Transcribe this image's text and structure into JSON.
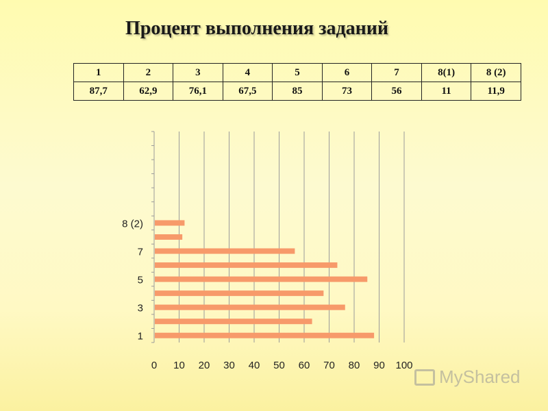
{
  "title": "Процент выполнения заданий",
  "table": {
    "headers": [
      "1",
      "2",
      "3",
      "4",
      "5",
      "6",
      "7",
      "8(1)",
      "8 (2)"
    ],
    "values": [
      "87,7",
      "62,9",
      "76,1",
      "67,5",
      "85",
      "73",
      "56",
      "11",
      "11,9"
    ]
  },
  "chart_data": {
    "type": "bar",
    "orientation": "horizontal",
    "categories": [
      "1",
      "2",
      "3",
      "4",
      "5",
      "6",
      "7",
      "8(1)",
      "8 (2)"
    ],
    "values": [
      87.7,
      62.9,
      76.1,
      67.5,
      85,
      73,
      56,
      11,
      11.9
    ],
    "ytick_labels": [
      "1",
      "3",
      "5",
      "7",
      "8 (2)"
    ],
    "xticks": [
      "0",
      "10",
      "20",
      "30",
      "40",
      "50",
      "60",
      "70",
      "80",
      "90",
      "100"
    ],
    "xlim": [
      0,
      100
    ],
    "grid": true,
    "bar_color": "#f79a6a"
  },
  "watermark": "MyShared"
}
